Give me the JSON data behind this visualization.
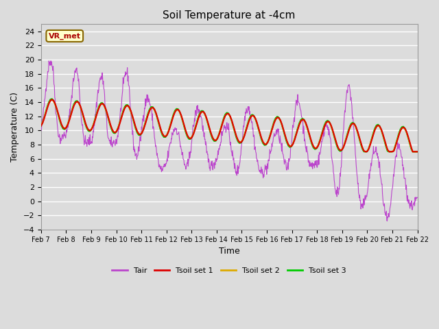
{
  "title": "Soil Temperature at -4cm",
  "xlabel": "Time",
  "ylabel": "Temperature (C)",
  "ylim": [
    -4,
    25
  ],
  "yticks": [
    -4,
    -2,
    0,
    2,
    4,
    6,
    8,
    10,
    12,
    14,
    16,
    18,
    20,
    22,
    24
  ],
  "background_color": "#dcdcdc",
  "plot_bg_color": "#dcdcdc",
  "grid_color": "#ffffff",
  "legend_entries": [
    "Tair",
    "Tsoil set 1",
    "Tsoil set 2",
    "Tsoil set 3"
  ],
  "legend_colors": [
    "#bb44cc",
    "#dd0000",
    "#ddaa00",
    "#00cc00"
  ],
  "annotation_text": "VR_met",
  "annotation_bg": "#ffffcc",
  "annotation_border": "#886600",
  "x_labels": [
    "Feb 7",
    "Feb 8",
    "Feb 9",
    "Feb 10",
    "Feb 11",
    "Feb 12",
    "Feb 13",
    "Feb 14",
    "Feb 15",
    "Feb 16",
    "Feb 17",
    "Feb 18",
    "Feb 19",
    "Feb 20",
    "Feb 21",
    "Feb 22"
  ]
}
